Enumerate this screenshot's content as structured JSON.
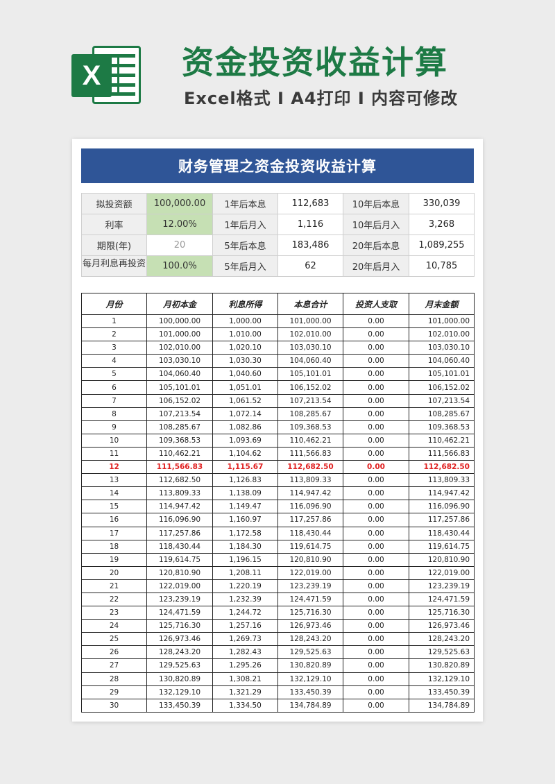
{
  "banner": {
    "logo_letter": "X",
    "title": "资金投资收益计算",
    "subtitle": "Excel格式 I A4打印 I 内容可修改"
  },
  "sheet": {
    "title": "财务管理之资金投资收益计算",
    "summary": [
      [
        "拟投资额",
        "100,000.00",
        "1年后本息",
        "112,683",
        "10年后本息",
        "330,039"
      ],
      [
        "利率",
        "12.00%",
        "1年后月入",
        "1,116",
        "10年后月入",
        "3,268"
      ],
      [
        "期限(年)",
        "20",
        "5年后本息",
        "183,486",
        "20年后本息",
        "1,089,255"
      ],
      [
        "每月利息再投资",
        "100.0%",
        "5年后月入",
        "62",
        "20年后月入",
        "10,785"
      ]
    ],
    "columns": [
      "月份",
      "月初本金",
      "利息所得",
      "本息合计",
      "投资人支取",
      "月末金额"
    ],
    "highlight_row": 12,
    "rows": [
      [
        "1",
        "100,000.00",
        "1,000.00",
        "101,000.00",
        "0.00",
        "101,000.00"
      ],
      [
        "2",
        "101,000.00",
        "1,010.00",
        "102,010.00",
        "0.00",
        "102,010.00"
      ],
      [
        "3",
        "102,010.00",
        "1,020.10",
        "103,030.10",
        "0.00",
        "103,030.10"
      ],
      [
        "4",
        "103,030.10",
        "1,030.30",
        "104,060.40",
        "0.00",
        "104,060.40"
      ],
      [
        "5",
        "104,060.40",
        "1,040.60",
        "105,101.01",
        "0.00",
        "105,101.01"
      ],
      [
        "6",
        "105,101.01",
        "1,051.01",
        "106,152.02",
        "0.00",
        "106,152.02"
      ],
      [
        "7",
        "106,152.02",
        "1,061.52",
        "107,213.54",
        "0.00",
        "107,213.54"
      ],
      [
        "8",
        "107,213.54",
        "1,072.14",
        "108,285.67",
        "0.00",
        "108,285.67"
      ],
      [
        "9",
        "108,285.67",
        "1,082.86",
        "109,368.53",
        "0.00",
        "109,368.53"
      ],
      [
        "10",
        "109,368.53",
        "1,093.69",
        "110,462.21",
        "0.00",
        "110,462.21"
      ],
      [
        "11",
        "110,462.21",
        "1,104.62",
        "111,566.83",
        "0.00",
        "111,566.83"
      ],
      [
        "12",
        "111,566.83",
        "1,115.67",
        "112,682.50",
        "0.00",
        "112,682.50"
      ],
      [
        "13",
        "112,682.50",
        "1,126.83",
        "113,809.33",
        "0.00",
        "113,809.33"
      ],
      [
        "14",
        "113,809.33",
        "1,138.09",
        "114,947.42",
        "0.00",
        "114,947.42"
      ],
      [
        "15",
        "114,947.42",
        "1,149.47",
        "116,096.90",
        "0.00",
        "116,096.90"
      ],
      [
        "16",
        "116,096.90",
        "1,160.97",
        "117,257.86",
        "0.00",
        "117,257.86"
      ],
      [
        "17",
        "117,257.86",
        "1,172.58",
        "118,430.44",
        "0.00",
        "118,430.44"
      ],
      [
        "18",
        "118,430.44",
        "1,184.30",
        "119,614.75",
        "0.00",
        "119,614.75"
      ],
      [
        "19",
        "119,614.75",
        "1,196.15",
        "120,810.90",
        "0.00",
        "120,810.90"
      ],
      [
        "20",
        "120,810.90",
        "1,208.11",
        "122,019.00",
        "0.00",
        "122,019.00"
      ],
      [
        "21",
        "122,019.00",
        "1,220.19",
        "123,239.19",
        "0.00",
        "123,239.19"
      ],
      [
        "22",
        "123,239.19",
        "1,232.39",
        "124,471.59",
        "0.00",
        "124,471.59"
      ],
      [
        "23",
        "124,471.59",
        "1,244.72",
        "125,716.30",
        "0.00",
        "125,716.30"
      ],
      [
        "24",
        "125,716.30",
        "1,257.16",
        "126,973.46",
        "0.00",
        "126,973.46"
      ],
      [
        "25",
        "126,973.46",
        "1,269.73",
        "128,243.20",
        "0.00",
        "128,243.20"
      ],
      [
        "26",
        "128,243.20",
        "1,282.43",
        "129,525.63",
        "0.00",
        "129,525.63"
      ],
      [
        "27",
        "129,525.63",
        "1,295.26",
        "130,820.89",
        "0.00",
        "130,820.89"
      ],
      [
        "28",
        "130,820.89",
        "1,308.21",
        "132,129.10",
        "0.00",
        "132,129.10"
      ],
      [
        "29",
        "132,129.10",
        "1,321.29",
        "133,450.39",
        "0.00",
        "133,450.39"
      ],
      [
        "30",
        "133,450.39",
        "1,334.50",
        "134,784.89",
        "0.00",
        "134,784.89"
      ]
    ]
  },
  "colors": {
    "brand_green": "#1d7a45",
    "title_blue": "#2f5597",
    "input_green": "#c6e0b4",
    "highlight_red": "#e02020"
  }
}
